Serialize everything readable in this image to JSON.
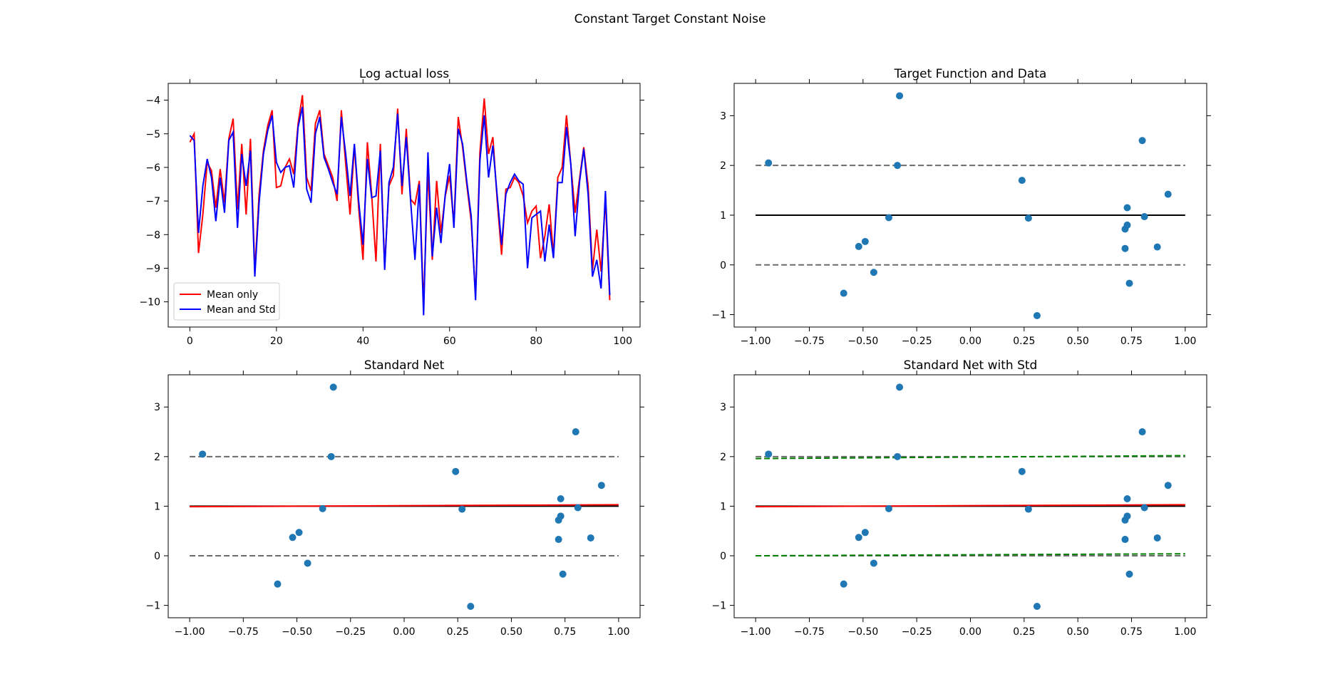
{
  "figure": {
    "suptitle": "Constant Target Constant Noise"
  },
  "colors": {
    "red": "#ff0000",
    "blue": "#0000ff",
    "black": "#000000",
    "gray": "#6b6b6b",
    "green": "#008000",
    "points": "#1f77b4"
  },
  "chart_data": [
    {
      "type": "line",
      "title": "Log actual loss",
      "xlim": [
        -5,
        104
      ],
      "ylim": [
        -10.75,
        -3.5
      ],
      "xticks": [
        0,
        20,
        40,
        60,
        80,
        100
      ],
      "yticks": [
        -4,
        -5,
        -6,
        -7,
        -8,
        -9,
        -10
      ],
      "legend_position": "lower-left",
      "series": [
        {
          "name": "Mean only",
          "color": "#ff0000",
          "values": [
            -5.25,
            -5.0,
            -8.55,
            -7.4,
            -5.85,
            -6.1,
            -7.2,
            -6.05,
            -7.05,
            -5.15,
            -4.55,
            -7.25,
            -5.3,
            -7.4,
            -5.15,
            -9.1,
            -6.8,
            -5.5,
            -4.75,
            -4.3,
            -6.6,
            -6.55,
            -6.0,
            -5.75,
            -6.2,
            -4.7,
            -3.85,
            -6.3,
            -6.7,
            -4.7,
            -4.3,
            -5.6,
            -5.95,
            -6.3,
            -7.0,
            -4.3,
            -5.9,
            -7.4,
            -5.35,
            -7.2,
            -8.75,
            -5.25,
            -6.8,
            -8.8,
            -5.3,
            -8.95,
            -6.55,
            -6.25,
            -4.25,
            -6.8,
            -4.85,
            -6.95,
            -7.1,
            -6.4,
            -10.1,
            -6.1,
            -8.75,
            -6.4,
            -7.95,
            -6.85,
            -6.25,
            -7.7,
            -4.5,
            -5.4,
            -6.55,
            -7.6,
            -9.85,
            -5.55,
            -3.95,
            -5.6,
            -5.1,
            -7.0,
            -8.6,
            -6.65,
            -6.6,
            -6.3,
            -6.45,
            -6.85,
            -7.65,
            -7.3,
            -7.15,
            -8.7,
            -8.05,
            -7.1,
            -8.6,
            -6.3,
            -6.0,
            -4.45,
            -5.9,
            -7.35,
            -6.35,
            -5.4,
            -6.55,
            -9.05,
            -7.85,
            -9.1,
            -6.95,
            -9.95
          ]
        },
        {
          "name": "Mean and Std",
          "color": "#0000ff",
          "values": [
            -5.05,
            -5.2,
            -7.95,
            -6.55,
            -5.75,
            -6.3,
            -7.6,
            -6.3,
            -7.35,
            -5.2,
            -4.95,
            -7.8,
            -5.6,
            -6.55,
            -5.5,
            -9.25,
            -7.05,
            -5.6,
            -4.9,
            -4.45,
            -5.85,
            -6.15,
            -6.0,
            -5.95,
            -6.6,
            -4.8,
            -4.2,
            -6.65,
            -7.05,
            -5.0,
            -4.5,
            -5.7,
            -6.05,
            -6.45,
            -6.8,
            -4.5,
            -5.6,
            -6.85,
            -5.3,
            -7.0,
            -8.3,
            -5.75,
            -6.9,
            -6.85,
            -5.5,
            -9.05,
            -6.45,
            -6.0,
            -4.4,
            -6.55,
            -5.1,
            -7.0,
            -8.75,
            -6.5,
            -10.4,
            -5.55,
            -8.65,
            -7.2,
            -8.25,
            -6.8,
            -5.9,
            -7.8,
            -4.85,
            -5.3,
            -6.45,
            -7.45,
            -9.95,
            -5.8,
            -4.45,
            -6.3,
            -5.35,
            -6.85,
            -8.3,
            -6.8,
            -6.45,
            -6.2,
            -6.4,
            -6.5,
            -9.0,
            -7.5,
            -7.4,
            -7.3,
            -8.8,
            -7.7,
            -8.7,
            -6.45,
            -6.45,
            -4.8,
            -5.9,
            -8.05,
            -6.45,
            -5.45,
            -6.8,
            -9.25,
            -8.75,
            -9.6,
            -6.7,
            -9.8
          ]
        }
      ]
    },
    {
      "type": "scatter",
      "title": "Target Function and Data",
      "xlim": [
        -1.1,
        1.1
      ],
      "ylim": [
        -1.25,
        3.65
      ],
      "xticks": [
        -1.0,
        -0.75,
        -0.5,
        -0.25,
        0.0,
        0.25,
        0.5,
        0.75,
        1.0
      ],
      "yticks": [
        3,
        2,
        1,
        0,
        -1
      ],
      "points": [
        [
          -0.94,
          2.05
        ],
        [
          -0.33,
          3.4
        ],
        [
          -0.34,
          2.0
        ],
        [
          -0.38,
          0.95
        ],
        [
          -0.52,
          0.37
        ],
        [
          -0.49,
          0.47
        ],
        [
          -0.45,
          -0.15
        ],
        [
          -0.59,
          -0.57
        ],
        [
          0.24,
          1.7
        ],
        [
          0.27,
          0.94
        ],
        [
          0.31,
          -1.02
        ],
        [
          0.72,
          0.72
        ],
        [
          0.72,
          0.33
        ],
        [
          0.73,
          1.15
        ],
        [
          0.73,
          0.8
        ],
        [
          0.74,
          -0.37
        ],
        [
          0.8,
          2.5
        ],
        [
          0.81,
          0.97
        ],
        [
          0.87,
          0.36
        ],
        [
          0.92,
          1.42
        ]
      ],
      "lines": [
        {
          "y": 1,
          "style": "solid",
          "color": "#000000"
        },
        {
          "y": 2,
          "style": "dashed",
          "color": "#6b6b6b"
        },
        {
          "y": 0,
          "style": "dashed",
          "color": "#6b6b6b"
        }
      ]
    },
    {
      "type": "scatter",
      "title": "Standard Net",
      "xlim": [
        -1.1,
        1.1
      ],
      "ylim": [
        -1.25,
        3.65
      ],
      "xticks": [
        -1.0,
        -0.75,
        -0.5,
        -0.25,
        0.0,
        0.25,
        0.5,
        0.75,
        1.0
      ],
      "yticks": [
        3,
        2,
        1,
        0,
        -1
      ],
      "points": [
        [
          -0.94,
          2.05
        ],
        [
          -0.33,
          3.4
        ],
        [
          -0.34,
          2.0
        ],
        [
          -0.38,
          0.95
        ],
        [
          -0.52,
          0.37
        ],
        [
          -0.49,
          0.47
        ],
        [
          -0.45,
          -0.15
        ],
        [
          -0.59,
          -0.57
        ],
        [
          0.24,
          1.7
        ],
        [
          0.27,
          0.94
        ],
        [
          0.31,
          -1.02
        ],
        [
          0.72,
          0.72
        ],
        [
          0.72,
          0.33
        ],
        [
          0.73,
          1.15
        ],
        [
          0.73,
          0.8
        ],
        [
          0.74,
          -0.37
        ],
        [
          0.8,
          2.5
        ],
        [
          0.81,
          0.97
        ],
        [
          0.87,
          0.36
        ],
        [
          0.92,
          1.42
        ]
      ],
      "lines": [
        {
          "y": 1,
          "style": "solid",
          "color": "#000000"
        },
        {
          "y": 2,
          "style": "dashed",
          "color": "#6b6b6b"
        },
        {
          "y": 0,
          "style": "dashed",
          "color": "#6b6b6b"
        },
        {
          "y_from": 0.99,
          "y_to": 1.03,
          "style": "solid",
          "color": "#ff0000"
        }
      ]
    },
    {
      "type": "scatter",
      "title": "Standard Net with Std",
      "xlim": [
        -1.1,
        1.1
      ],
      "ylim": [
        -1.25,
        3.65
      ],
      "xticks": [
        -1.0,
        -0.75,
        -0.5,
        -0.25,
        0.0,
        0.25,
        0.5,
        0.75,
        1.0
      ],
      "yticks": [
        3,
        2,
        1,
        0,
        -1
      ],
      "points": [
        [
          -0.94,
          2.05
        ],
        [
          -0.33,
          3.4
        ],
        [
          -0.34,
          2.0
        ],
        [
          -0.38,
          0.95
        ],
        [
          -0.52,
          0.37
        ],
        [
          -0.49,
          0.47
        ],
        [
          -0.45,
          -0.15
        ],
        [
          -0.59,
          -0.57
        ],
        [
          0.24,
          1.7
        ],
        [
          0.27,
          0.94
        ],
        [
          0.31,
          -1.02
        ],
        [
          0.72,
          0.72
        ],
        [
          0.72,
          0.33
        ],
        [
          0.73,
          1.15
        ],
        [
          0.73,
          0.8
        ],
        [
          0.74,
          -0.37
        ],
        [
          0.8,
          2.5
        ],
        [
          0.81,
          0.97
        ],
        [
          0.87,
          0.36
        ],
        [
          0.92,
          1.42
        ]
      ],
      "lines": [
        {
          "y": 1,
          "style": "solid",
          "color": "#000000"
        },
        {
          "y": 2,
          "style": "dashed",
          "color": "#6b6b6b"
        },
        {
          "y": 0,
          "style": "dashed",
          "color": "#6b6b6b"
        },
        {
          "y_from": 0.99,
          "y_to": 1.03,
          "style": "solid",
          "color": "#ff0000"
        },
        {
          "y_from": 1.96,
          "y_to": 2.02,
          "style": "dashed",
          "color": "#008000"
        },
        {
          "y_from": 0.0,
          "y_to": 0.04,
          "style": "dashed",
          "color": "#008000"
        }
      ]
    }
  ]
}
